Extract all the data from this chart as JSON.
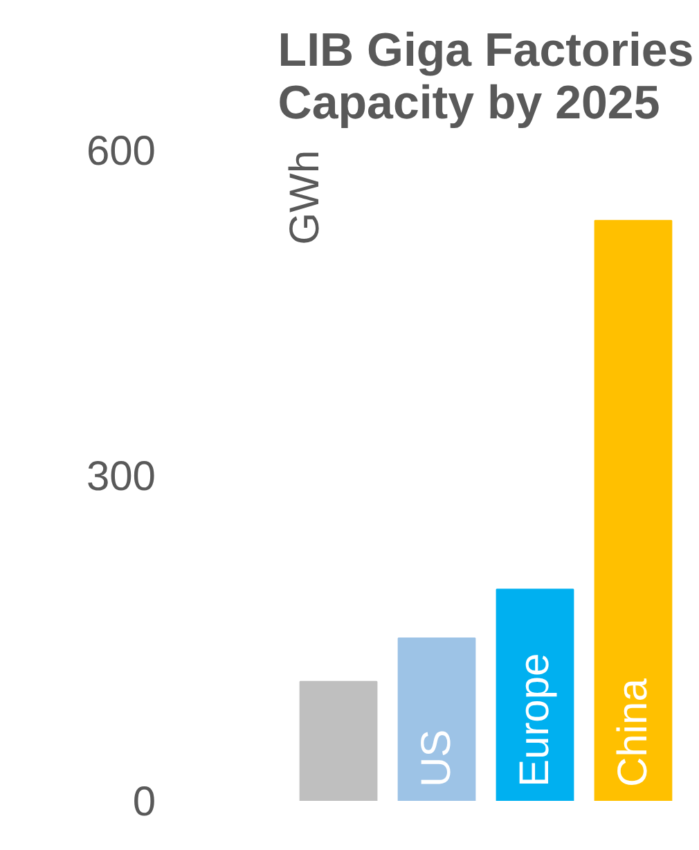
{
  "chart_data": {
    "type": "bar",
    "title": "LIB Giga Factories\nCapacity by 2025",
    "ylabel": "GWh",
    "categories": [
      null,
      "US",
      "Europe",
      "China"
    ],
    "values": [
      110,
      150,
      195,
      535
    ],
    "colors": [
      "#bfbfbf",
      "#9dc3e6",
      "#00b0f0",
      "#ffc000"
    ],
    "ylim": [
      0,
      600
    ],
    "yticks": [
      0,
      300,
      600
    ],
    "grid": false
  }
}
